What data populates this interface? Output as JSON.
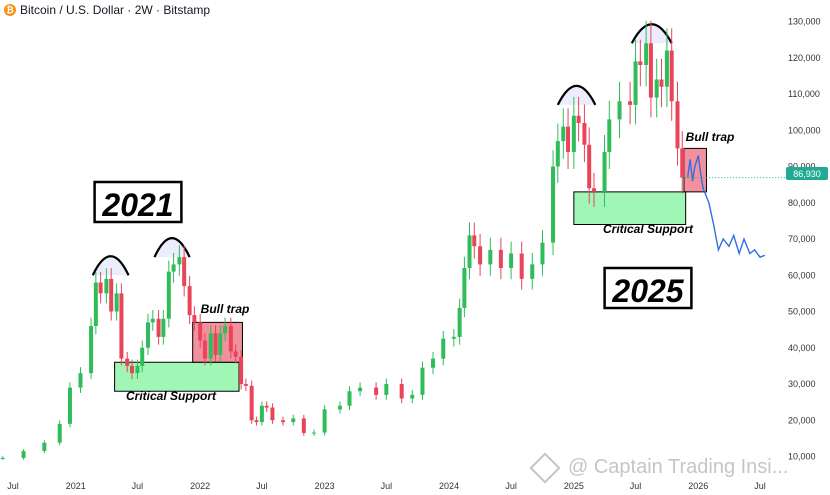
{
  "header": {
    "title": "Bitcoin / U.S. Dollar · 2W · Bitstamp",
    "icon": "bitcoin-icon"
  },
  "price_tag": "86,930",
  "watermark": "@ Captain Trading Insi...",
  "colors": {
    "up": "#2ebd58",
    "down": "#e9445a",
    "support": "#8ff5a8",
    "trap": "#f07d8c",
    "projection": "#2f6fe0",
    "price_tag": "#22ab94"
  },
  "annotations": {
    "year_left": "2021",
    "year_right": "2025",
    "bull_trap_left": "Bull trap",
    "bull_trap_right": "Bull trap",
    "support_left": "Critical Support",
    "support_right": "Critical Support"
  },
  "chart_data": {
    "type": "candlestick",
    "title": "Bitcoin / U.S. Dollar · 2W · Bitstamp",
    "y_axis": {
      "ticks": [
        10000,
        20000,
        30000,
        40000,
        50000,
        60000,
        70000,
        80000,
        90000,
        100000,
        110000,
        120000,
        130000
      ],
      "tick_labels": [
        "10,000",
        "20,000",
        "30,000",
        "40,000",
        "50,000",
        "60,000",
        "70,000",
        "80,000",
        "90,000",
        "100,000",
        "110,000",
        "120,000",
        "130,000"
      ],
      "ylim": [
        6500,
        131000
      ]
    },
    "x_axis": {
      "tick_labels": [
        "Jul",
        "2021",
        "Jul",
        "2022",
        "Jul",
        "2023",
        "Jul",
        "2024",
        "Jul",
        "2025",
        "Jul",
        "2026",
        "Jul"
      ],
      "xlim": [
        "2020-05",
        "2026-09"
      ]
    },
    "last_price": 86930,
    "candles": [
      [
        "2020-06-01",
        9500,
        9600
      ],
      [
        "2020-08-01",
        9600,
        11500
      ],
      [
        "2020-10-01",
        11500,
        13800
      ],
      [
        "2020-11-15",
        13800,
        19000
      ],
      [
        "2020-12-15",
        19000,
        29000
      ],
      [
        "2021-01-15",
        29000,
        33000
      ],
      [
        "2021-02-15",
        33000,
        46000
      ],
      [
        "2021-03-01",
        46000,
        58000
      ],
      [
        "2021-03-15",
        58000,
        55000
      ],
      [
        "2021-04-01",
        55000,
        59000
      ],
      [
        "2021-04-15",
        59000,
        50000
      ],
      [
        "2021-05-01",
        50000,
        55000
      ],
      [
        "2021-05-15",
        55000,
        37000
      ],
      [
        "2021-06-01",
        37000,
        35000
      ],
      [
        "2021-06-15",
        35000,
        33000
      ],
      [
        "2021-07-01",
        33000,
        35000
      ],
      [
        "2021-07-15",
        35000,
        40000
      ],
      [
        "2021-08-01",
        40000,
        47000
      ],
      [
        "2021-08-15",
        47000,
        48000
      ],
      [
        "2021-09-01",
        48000,
        43000
      ],
      [
        "2021-09-15",
        43000,
        48000
      ],
      [
        "2021-10-01",
        48000,
        61000
      ],
      [
        "2021-10-15",
        61000,
        63000
      ],
      [
        "2021-11-01",
        63000,
        65000
      ],
      [
        "2021-11-15",
        65000,
        57000
      ],
      [
        "2021-12-01",
        57000,
        49000
      ],
      [
        "2021-12-15",
        49000,
        47000
      ],
      [
        "2022-01-01",
        47000,
        42000
      ],
      [
        "2022-01-15",
        42000,
        37000
      ],
      [
        "2022-02-01",
        37000,
        44000
      ],
      [
        "2022-02-15",
        44000,
        38000
      ],
      [
        "2022-03-01",
        38000,
        44000
      ],
      [
        "2022-03-15",
        44000,
        46000
      ],
      [
        "2022-04-01",
        46000,
        39000
      ],
      [
        "2022-04-15",
        39000,
        37500
      ],
      [
        "2022-05-01",
        37500,
        30000
      ],
      [
        "2022-05-15",
        30000,
        29500
      ],
      [
        "2022-06-01",
        29500,
        20000
      ],
      [
        "2022-06-15",
        20000,
        19500
      ],
      [
        "2022-07-01",
        19500,
        24000
      ],
      [
        "2022-07-15",
        24000,
        23500
      ],
      [
        "2022-08-01",
        23500,
        20000
      ],
      [
        "2022-09-01",
        20000,
        19500
      ],
      [
        "2022-10-01",
        19500,
        20500
      ],
      [
        "2022-11-01",
        20500,
        16500
      ],
      [
        "2022-12-01",
        16500,
        16600
      ],
      [
        "2023-01-01",
        16600,
        23000
      ],
      [
        "2023-02-15",
        23000,
        24000
      ],
      [
        "2023-03-15",
        24000,
        28000
      ],
      [
        "2023-04-15",
        28000,
        29000
      ],
      [
        "2023-06-01",
        29000,
        27000
      ],
      [
        "2023-07-01",
        27000,
        30000
      ],
      [
        "2023-08-15",
        30000,
        26000
      ],
      [
        "2023-09-15",
        26000,
        27000
      ],
      [
        "2023-10-15",
        27000,
        34500
      ],
      [
        "2023-11-15",
        34500,
        37000
      ],
      [
        "2023-12-15",
        37000,
        42500
      ],
      [
        "2024-01-15",
        42500,
        43000
      ],
      [
        "2024-02-01",
        43000,
        51000
      ],
      [
        "2024-02-15",
        51000,
        62000
      ],
      [
        "2024-03-01",
        62000,
        71000
      ],
      [
        "2024-03-15",
        71000,
        68000
      ],
      [
        "2024-04-01",
        68000,
        63000
      ],
      [
        "2024-05-01",
        63000,
        67000
      ],
      [
        "2024-06-01",
        67000,
        62000
      ],
      [
        "2024-07-01",
        62000,
        66000
      ],
      [
        "2024-08-01",
        66000,
        59000
      ],
      [
        "2024-09-01",
        59000,
        63000
      ],
      [
        "2024-10-01",
        63000,
        69000
      ],
      [
        "2024-11-01",
        69000,
        90000
      ],
      [
        "2024-11-15",
        90000,
        97000
      ],
      [
        "2024-12-01",
        97000,
        101000
      ],
      [
        "2024-12-15",
        101000,
        94000
      ],
      [
        "2025-01-01",
        94000,
        104000
      ],
      [
        "2025-01-15",
        104000,
        102000
      ],
      [
        "2025-02-01",
        102000,
        96000
      ],
      [
        "2025-02-15",
        96000,
        84000
      ],
      [
        "2025-03-01",
        84000,
        83000
      ],
      [
        "2025-04-01",
        83000,
        94000
      ],
      [
        "2025-04-15",
        94000,
        103000
      ],
      [
        "2025-05-15",
        103000,
        108000
      ],
      [
        "2025-06-15",
        108000,
        107000
      ],
      [
        "2025-07-01",
        107000,
        119000
      ],
      [
        "2025-07-15",
        119000,
        118000
      ],
      [
        "2025-08-01",
        118000,
        124000
      ],
      [
        "2025-08-15",
        124000,
        109000
      ],
      [
        "2025-09-01",
        109000,
        114000
      ],
      [
        "2025-09-15",
        114000,
        112000
      ],
      [
        "2025-10-01",
        112000,
        122000
      ],
      [
        "2025-10-15",
        122000,
        108000
      ],
      [
        "2025-11-01",
        108000,
        95000
      ],
      [
        "2025-11-15",
        95000,
        86930
      ]
    ],
    "projection": [
      [
        "2025-12-01",
        87000
      ],
      [
        "2025-12-08",
        92000
      ],
      [
        "2025-12-15",
        86000
      ],
      [
        "2025-12-22",
        90000
      ],
      [
        "2026-01-01",
        93000
      ],
      [
        "2026-01-08",
        88000
      ],
      [
        "2026-01-15",
        84000
      ],
      [
        "2026-02-01",
        80000
      ],
      [
        "2026-02-15",
        74000
      ],
      [
        "2026-03-01",
        67000
      ],
      [
        "2026-03-15",
        70000
      ],
      [
        "2026-04-01",
        68000
      ],
      [
        "2026-04-15",
        71000
      ],
      [
        "2026-05-01",
        66000
      ],
      [
        "2026-05-15",
        70000
      ],
      [
        "2026-06-01",
        66000
      ],
      [
        "2026-06-15",
        67000
      ],
      [
        "2026-07-01",
        65000
      ],
      [
        "2026-07-15",
        65500
      ]
    ]
  }
}
